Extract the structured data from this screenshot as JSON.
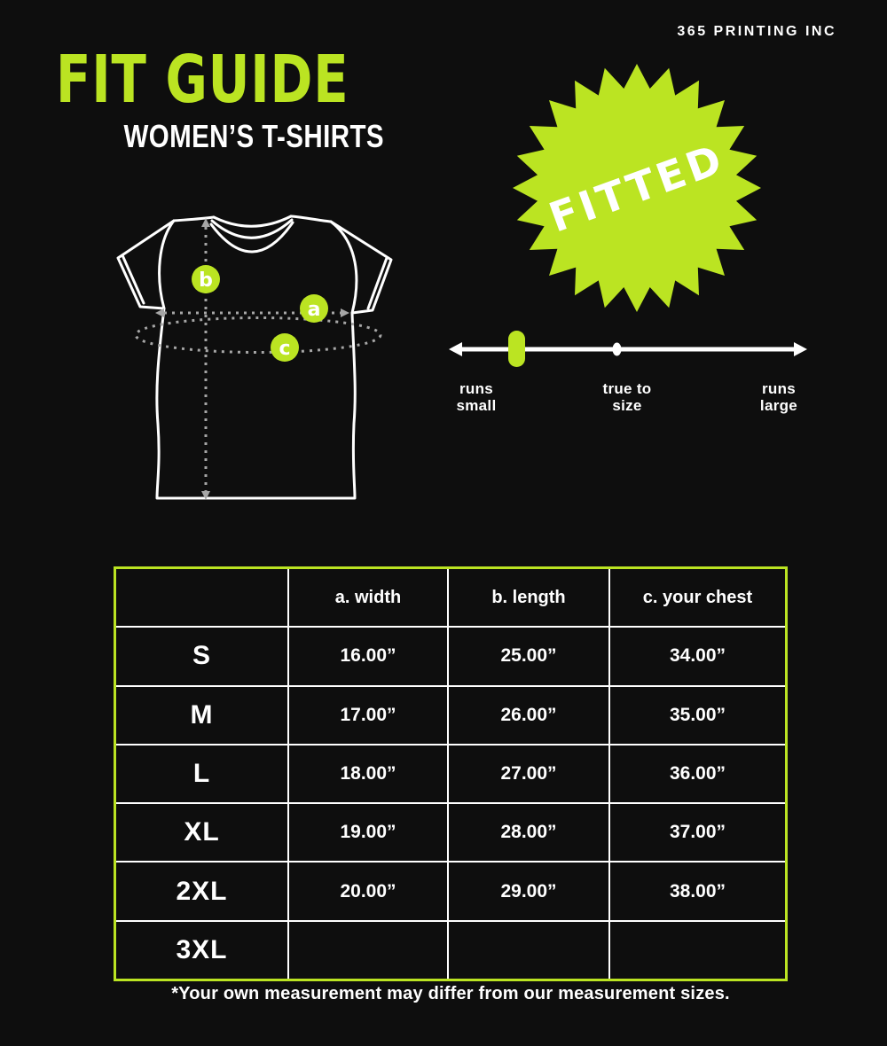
{
  "colors": {
    "background": "#0e0e0e",
    "accent_green": "#bbe422",
    "line_white": "#ffffff",
    "dash_gray": "#a6a6a6"
  },
  "header": {
    "brand": "365 PRINTING INC",
    "title": "FIT GUIDE",
    "subtitle": "WOMEN’S T-SHIRTS"
  },
  "badge": {
    "label": "FITTED"
  },
  "fit_scale": {
    "marker_position": "runs small",
    "labels": {
      "left_line1": "runs",
      "left_line2": "small",
      "center_line1": "true to",
      "center_line2": "size",
      "right_line1": "runs",
      "right_line2": "large"
    }
  },
  "diagram": {
    "marker_a": "a",
    "marker_b": "b",
    "marker_c": "c"
  },
  "size_table": {
    "columns": [
      "a. width",
      "b. length",
      "c. your chest"
    ],
    "rows": [
      {
        "size": "S",
        "width": "16.00”",
        "length": "25.00”",
        "chest": "34.00”"
      },
      {
        "size": "M",
        "width": "17.00”",
        "length": "26.00”",
        "chest": "35.00”"
      },
      {
        "size": "L",
        "width": "18.00”",
        "length": "27.00”",
        "chest": "36.00”"
      },
      {
        "size": "XL",
        "width": "19.00”",
        "length": "28.00”",
        "chest": "37.00”"
      },
      {
        "size": "2XL",
        "width": "20.00”",
        "length": "29.00”",
        "chest": "38.00”"
      },
      {
        "size": "3XL",
        "width": "",
        "length": "",
        "chest": ""
      }
    ]
  },
  "footnote": "*Your own measurement may differ from our measurement sizes."
}
